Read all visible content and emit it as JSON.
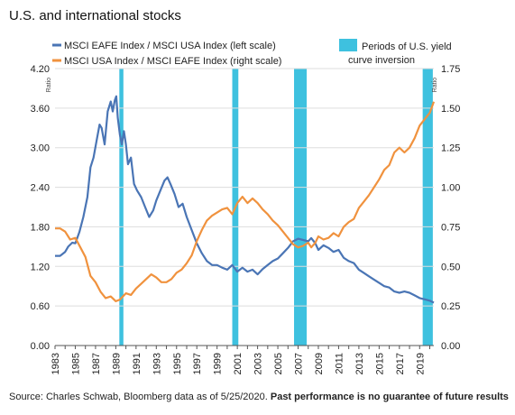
{
  "title": "U.S. and international stocks",
  "source_note": "Source: Charles Schwab, Bloomberg data as of 5/25/2020.",
  "disclaimer": "Past performance is no guarantee of future results",
  "colors": {
    "eafe_usa": "#4a75b5",
    "usa_eafe": "#f0923e",
    "inversion": "#3ec1df",
    "axis": "#555555"
  },
  "chart_data": {
    "type": "line",
    "left_axis": {
      "ylabel": "Ratio",
      "ylim": [
        0,
        4.2
      ],
      "ticks": [
        "0.00",
        "0.60",
        "1.20",
        "1.80",
        "2.40",
        "3.00",
        "3.60",
        "4.20"
      ]
    },
    "right_axis": {
      "ylabel": "Ratio",
      "ylim": [
        0,
        1.75
      ],
      "ticks": [
        "0.00",
        "0.25",
        "0.50",
        "0.75",
        "1.00",
        "1.25",
        "1.50",
        "1.75"
      ]
    },
    "x_ticks": [
      "1983",
      "1985",
      "1987",
      "1989",
      "1991",
      "1993",
      "1995",
      "1997",
      "1999",
      "2001",
      "2003",
      "2005",
      "2007",
      "2009",
      "2011",
      "2013",
      "2015",
      "2017",
      "2019"
    ],
    "xlim": [
      1983,
      2020.4
    ],
    "legend": {
      "series": [
        "MSCI EAFE Index / MSCI USA Index (left scale)",
        "MSCI USA Index / MSCI EAFE Index (right scale)"
      ],
      "inversion_label": [
        "Periods of U.S. yield",
        "curve inversion"
      ]
    },
    "inversion_periods": [
      [
        1989.35,
        1989.75
      ],
      [
        2000.5,
        2001.1
      ],
      [
        2006.6,
        2007.85
      ],
      [
        2019.3,
        2020.3
      ]
    ],
    "series": [
      {
        "name": "MSCI EAFE Index / MSCI USA Index (left scale)",
        "axis": "left",
        "points": [
          [
            1983.0,
            1.36
          ],
          [
            1983.5,
            1.36
          ],
          [
            1984.0,
            1.42
          ],
          [
            1984.3,
            1.5
          ],
          [
            1984.7,
            1.56
          ],
          [
            1985.0,
            1.55
          ],
          [
            1985.4,
            1.72
          ],
          [
            1985.8,
            1.95
          ],
          [
            1986.2,
            2.25
          ],
          [
            1986.5,
            2.7
          ],
          [
            1986.8,
            2.85
          ],
          [
            1987.1,
            3.1
          ],
          [
            1987.4,
            3.35
          ],
          [
            1987.6,
            3.3
          ],
          [
            1987.9,
            3.05
          ],
          [
            1988.2,
            3.55
          ],
          [
            1988.5,
            3.7
          ],
          [
            1988.7,
            3.55
          ],
          [
            1988.9,
            3.72
          ],
          [
            1989.05,
            3.78
          ],
          [
            1989.2,
            3.45
          ],
          [
            1989.4,
            3.2
          ],
          [
            1989.6,
            3.05
          ],
          [
            1989.8,
            3.25
          ],
          [
            1990.0,
            3.05
          ],
          [
            1990.2,
            2.75
          ],
          [
            1990.5,
            2.85
          ],
          [
            1990.8,
            2.45
          ],
          [
            1991.1,
            2.35
          ],
          [
            1991.5,
            2.25
          ],
          [
            1991.9,
            2.1
          ],
          [
            1992.3,
            1.95
          ],
          [
            1992.7,
            2.05
          ],
          [
            1993.0,
            2.2
          ],
          [
            1993.4,
            2.35
          ],
          [
            1993.8,
            2.5
          ],
          [
            1994.1,
            2.55
          ],
          [
            1994.4,
            2.45
          ],
          [
            1994.8,
            2.3
          ],
          [
            1995.2,
            2.1
          ],
          [
            1995.6,
            2.15
          ],
          [
            1996.0,
            1.95
          ],
          [
            1996.5,
            1.75
          ],
          [
            1997.0,
            1.55
          ],
          [
            1997.5,
            1.4
          ],
          [
            1998.0,
            1.28
          ],
          [
            1998.5,
            1.22
          ],
          [
            1999.0,
            1.22
          ],
          [
            1999.5,
            1.18
          ],
          [
            2000.0,
            1.15
          ],
          [
            2000.5,
            1.22
          ],
          [
            2001.0,
            1.12
          ],
          [
            2001.5,
            1.18
          ],
          [
            2002.0,
            1.12
          ],
          [
            2002.5,
            1.15
          ],
          [
            2003.0,
            1.08
          ],
          [
            2003.5,
            1.16
          ],
          [
            2004.0,
            1.22
          ],
          [
            2004.5,
            1.28
          ],
          [
            2005.0,
            1.32
          ],
          [
            2005.5,
            1.4
          ],
          [
            2006.0,
            1.48
          ],
          [
            2006.5,
            1.58
          ],
          [
            2007.0,
            1.62
          ],
          [
            2007.5,
            1.6
          ],
          [
            2008.0,
            1.58
          ],
          [
            2008.3,
            1.63
          ],
          [
            2008.7,
            1.55
          ],
          [
            2009.0,
            1.45
          ],
          [
            2009.5,
            1.52
          ],
          [
            2010.0,
            1.48
          ],
          [
            2010.5,
            1.42
          ],
          [
            2011.0,
            1.45
          ],
          [
            2011.5,
            1.33
          ],
          [
            2012.0,
            1.28
          ],
          [
            2012.5,
            1.25
          ],
          [
            2013.0,
            1.15
          ],
          [
            2013.5,
            1.1
          ],
          [
            2014.0,
            1.05
          ],
          [
            2014.5,
            1.0
          ],
          [
            2015.0,
            0.95
          ],
          [
            2015.5,
            0.9
          ],
          [
            2016.0,
            0.88
          ],
          [
            2016.5,
            0.82
          ],
          [
            2017.0,
            0.8
          ],
          [
            2017.5,
            0.82
          ],
          [
            2018.0,
            0.8
          ],
          [
            2018.5,
            0.76
          ],
          [
            2019.0,
            0.72
          ],
          [
            2019.5,
            0.7
          ],
          [
            2020.0,
            0.68
          ],
          [
            2020.4,
            0.65
          ]
        ]
      },
      {
        "name": "MSCI USA Index / MSCI EAFE Index (right scale)",
        "axis": "right",
        "points": [
          [
            1983.0,
            0.74
          ],
          [
            1983.5,
            0.74
          ],
          [
            1984.0,
            0.72
          ],
          [
            1984.5,
            0.67
          ],
          [
            1985.0,
            0.68
          ],
          [
            1985.5,
            0.62
          ],
          [
            1986.0,
            0.56
          ],
          [
            1986.5,
            0.44
          ],
          [
            1987.0,
            0.4
          ],
          [
            1987.5,
            0.34
          ],
          [
            1988.0,
            0.3
          ],
          [
            1988.5,
            0.31
          ],
          [
            1989.0,
            0.28
          ],
          [
            1989.4,
            0.29
          ],
          [
            1989.7,
            0.31
          ],
          [
            1990.0,
            0.33
          ],
          [
            1990.5,
            0.32
          ],
          [
            1991.0,
            0.36
          ],
          [
            1991.5,
            0.39
          ],
          [
            1992.0,
            0.42
          ],
          [
            1992.5,
            0.45
          ],
          [
            1993.0,
            0.43
          ],
          [
            1993.5,
            0.4
          ],
          [
            1994.0,
            0.4
          ],
          [
            1994.5,
            0.42
          ],
          [
            1995.0,
            0.46
          ],
          [
            1995.5,
            0.48
          ],
          [
            1996.0,
            0.52
          ],
          [
            1996.5,
            0.57
          ],
          [
            1997.0,
            0.66
          ],
          [
            1997.5,
            0.73
          ],
          [
            1998.0,
            0.79
          ],
          [
            1998.5,
            0.82
          ],
          [
            1999.0,
            0.84
          ],
          [
            1999.5,
            0.86
          ],
          [
            2000.0,
            0.87
          ],
          [
            2000.5,
            0.83
          ],
          [
            2001.0,
            0.9
          ],
          [
            2001.5,
            0.94
          ],
          [
            2002.0,
            0.9
          ],
          [
            2002.5,
            0.93
          ],
          [
            2003.0,
            0.9
          ],
          [
            2003.5,
            0.86
          ],
          [
            2004.0,
            0.83
          ],
          [
            2004.5,
            0.79
          ],
          [
            2005.0,
            0.76
          ],
          [
            2005.5,
            0.72
          ],
          [
            2006.0,
            0.68
          ],
          [
            2006.5,
            0.64
          ],
          [
            2007.0,
            0.62
          ],
          [
            2007.5,
            0.63
          ],
          [
            2008.0,
            0.65
          ],
          [
            2008.3,
            0.62
          ],
          [
            2008.7,
            0.65
          ],
          [
            2009.0,
            0.69
          ],
          [
            2009.5,
            0.67
          ],
          [
            2010.0,
            0.68
          ],
          [
            2010.5,
            0.71
          ],
          [
            2011.0,
            0.69
          ],
          [
            2011.5,
            0.75
          ],
          [
            2012.0,
            0.78
          ],
          [
            2012.5,
            0.8
          ],
          [
            2013.0,
            0.87
          ],
          [
            2013.5,
            0.91
          ],
          [
            2014.0,
            0.95
          ],
          [
            2014.5,
            1.0
          ],
          [
            2015.0,
            1.05
          ],
          [
            2015.5,
            1.11
          ],
          [
            2016.0,
            1.14
          ],
          [
            2016.5,
            1.22
          ],
          [
            2017.0,
            1.25
          ],
          [
            2017.5,
            1.22
          ],
          [
            2018.0,
            1.25
          ],
          [
            2018.5,
            1.31
          ],
          [
            2019.0,
            1.39
          ],
          [
            2019.5,
            1.43
          ],
          [
            2020.0,
            1.47
          ],
          [
            2020.4,
            1.54
          ]
        ]
      }
    ]
  }
}
